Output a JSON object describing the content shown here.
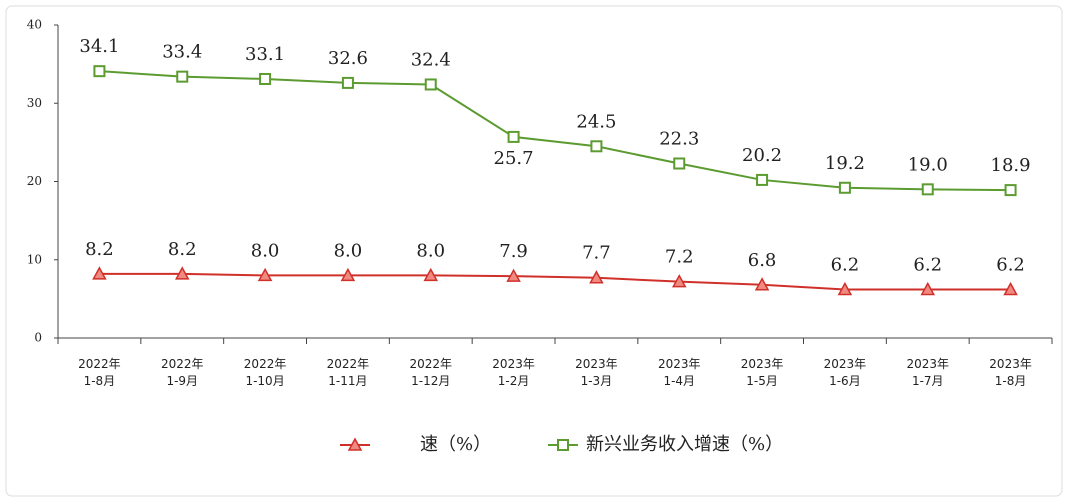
{
  "chart_data": {
    "type": "line",
    "categories": [
      "2022年\n1-8月",
      "2022年\n1-9月",
      "2022年\n1-10月",
      "2022年\n1-11月",
      "2022年\n1-12月",
      "2023年\n1-2月",
      "2023年\n1-3月",
      "2023年\n1-4月",
      "2023年\n1-5月",
      "2023年\n1-6月",
      "2023年\n1-7月",
      "2023年\n1-8月"
    ],
    "series": [
      {
        "name": "速（%）",
        "color": "#d0302a",
        "marker": "triangle",
        "values": [
          8.2,
          8.2,
          8.0,
          8.0,
          8.0,
          7.9,
          7.7,
          7.2,
          6.8,
          6.2,
          6.2,
          6.2
        ],
        "value_labels": [
          "8.2",
          "8.2",
          "8.0",
          "8.0",
          "8.0",
          "7.9",
          "7.7",
          "7.2",
          "6.8",
          "6.2",
          "6.2",
          "6.2"
        ]
      },
      {
        "name": "新兴业务收入增速（%）",
        "color": "#5b9b30",
        "marker": "square",
        "values": [
          34.1,
          33.4,
          33.1,
          32.6,
          32.4,
          25.7,
          24.5,
          22.3,
          20.2,
          19.2,
          19.0,
          18.9
        ],
        "value_labels": [
          "34.1",
          "33.4",
          "33.1",
          "32.6",
          "32.4",
          "25.7",
          "24.5",
          "22.3",
          "20.2",
          "19.2",
          "19.0",
          "18.9"
        ]
      }
    ],
    "ylim": [
      0,
      40
    ],
    "yticks": [
      0,
      10,
      20,
      30,
      40
    ],
    "grid": false
  }
}
